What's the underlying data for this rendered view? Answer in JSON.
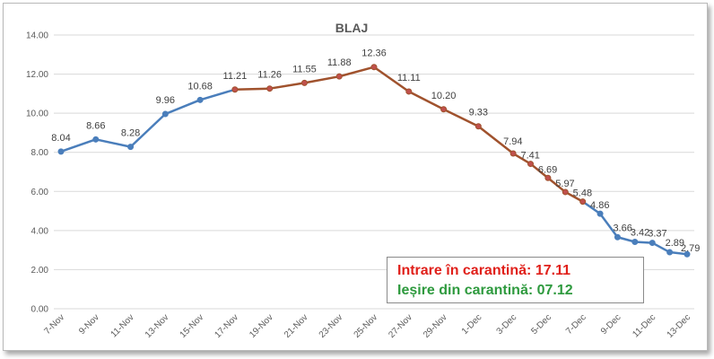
{
  "chart_data": {
    "type": "line",
    "title": "BLAJ",
    "xlabel": "",
    "ylabel": "",
    "ylim": [
      0,
      14
    ],
    "yticks": [
      "0.00",
      "2.00",
      "4.00",
      "6.00",
      "8.00",
      "10.00",
      "12.00",
      "14.00"
    ],
    "grid": true,
    "x_tick_labels": [
      "7-Nov",
      "9-Nov",
      "11-Nov",
      "13-Nov",
      "15-Nov",
      "17-Nov",
      "19-Nov",
      "21-Nov",
      "23-Nov",
      "25-Nov",
      "27-Nov",
      "29-Nov",
      "1-Dec",
      "3-Dec",
      "5-Dec",
      "7-Dec",
      "9-Dec",
      "11-Dec",
      "13-Dec"
    ],
    "points": [
      {
        "x": "7-Nov",
        "y": 8.04,
        "label": "8.04"
      },
      {
        "x": "9-Nov",
        "y": 8.66,
        "label": "8.66"
      },
      {
        "x": "11-Nov",
        "y": 8.28,
        "label": "8.28"
      },
      {
        "x": "13-Nov",
        "y": 9.96,
        "label": "9.96"
      },
      {
        "x": "15-Nov",
        "y": 10.68,
        "label": "10.68"
      },
      {
        "x": "17-Nov",
        "y": 11.21,
        "label": "11.21"
      },
      {
        "x": "19-Nov",
        "y": 11.26,
        "label": "11.26"
      },
      {
        "x": "21-Nov",
        "y": 11.55,
        "label": "11.55"
      },
      {
        "x": "23-Nov",
        "y": 11.88,
        "label": "11.88"
      },
      {
        "x": "25-Nov",
        "y": 12.36,
        "label": "12.36"
      },
      {
        "x": "27-Nov",
        "y": 11.11,
        "label": "11.11"
      },
      {
        "x": "29-Nov",
        "y": 10.2,
        "label": "10.20"
      },
      {
        "x": "1-Dec",
        "y": 9.33,
        "label": "9.33"
      },
      {
        "x": "3-Dec",
        "y": 7.94,
        "label": "7.94"
      },
      {
        "x": "4-Dec",
        "y": 7.41,
        "label": "7.41"
      },
      {
        "x": "5-Dec",
        "y": 6.69,
        "label": "6.69"
      },
      {
        "x": "6-Dec",
        "y": 5.97,
        "label": "5.97"
      },
      {
        "x": "7-Dec",
        "y": 5.48,
        "label": "5.48"
      },
      {
        "x": "8-Dec",
        "y": 4.86,
        "label": "4.86"
      },
      {
        "x": "9-Dec",
        "y": 3.66,
        "label": "3.66"
      },
      {
        "x": "10-Dec",
        "y": 3.42,
        "label": "3.42"
      },
      {
        "x": "11-Dec",
        "y": 3.37,
        "label": "3.37"
      },
      {
        "x": "12-Dec",
        "y": 2.89,
        "label": "2.89"
      },
      {
        "x": "13-Dec",
        "y": 2.79,
        "label": "2.79"
      }
    ],
    "quarantine_period": {
      "start": "17-Nov",
      "end": "7-Dec"
    },
    "colors": {
      "line_outside_quarantine": "#4a7ebb",
      "line_in_quarantine": "#a0522d",
      "marker_in_quarantine": "#c0504d",
      "grid": "#d9d9d9"
    }
  },
  "annotation": {
    "entry_text": "Intrare în carantină: 17.11",
    "exit_text": "Ieșire din carantină: 07.12",
    "entry_color": "#e0201a",
    "exit_color": "#2e9a3e"
  }
}
